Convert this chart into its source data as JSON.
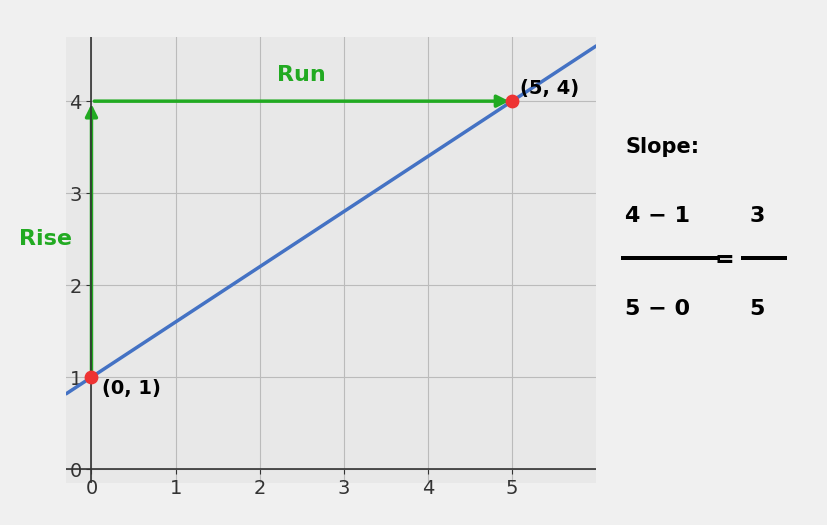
{
  "background_color": "#e8e8e8",
  "plot_bg_color": "#e8e8e8",
  "line_color": "#4472c4",
  "line_width": 2.5,
  "point1": [
    0,
    1
  ],
  "point2": [
    5,
    4
  ],
  "point_color": "#ee3333",
  "point_size": 80,
  "rise_run_color": "#22aa22",
  "rise_label": "Rise",
  "run_label": "Run",
  "label_p1": "(0, 1)",
  "label_p2": "(5, 4)",
  "xlim": [
    -0.3,
    6.0
  ],
  "ylim": [
    -0.15,
    4.7
  ],
  "xticks": [
    0,
    1,
    2,
    3,
    4,
    5
  ],
  "yticks": [
    0,
    1,
    2,
    3,
    4
  ],
  "slope_title": "Slope:",
  "slope_formula_num": "4 − 1",
  "slope_formula_den": "5 − 0",
  "slope_result_num": "3",
  "slope_result_den": "5",
  "grid_color": "#bbbbbb",
  "axis_color": "#555555",
  "tick_label_fontsize": 14,
  "annotation_fontsize": 14,
  "rise_run_fontsize": 16
}
